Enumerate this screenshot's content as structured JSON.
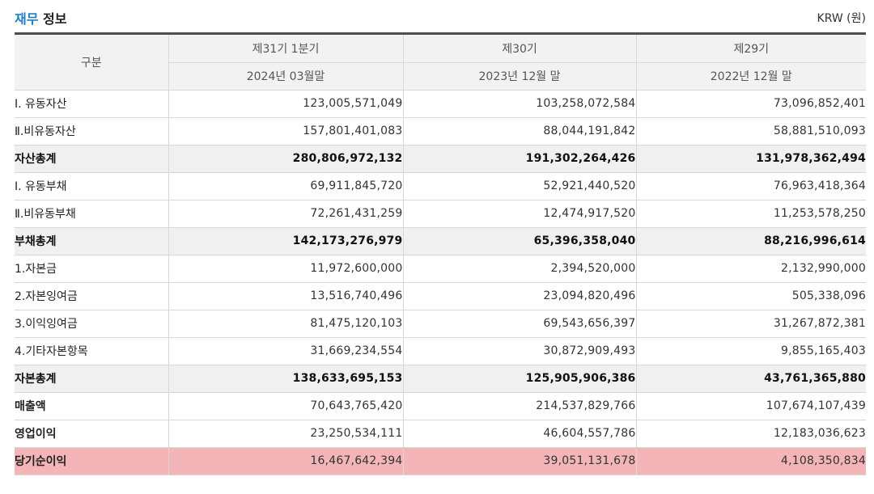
{
  "header": {
    "title_accent": "재무",
    "title_rest": "정보",
    "unit": "KRW (원)"
  },
  "table": {
    "corner_label": "구분",
    "columns": [
      {
        "period": "제31기 1분기",
        "date": "2024년 03월말"
      },
      {
        "period": "제30기",
        "date": "2023년 12월 말"
      },
      {
        "period": "제29기",
        "date": "2022년 12월 말"
      }
    ],
    "rows": [
      {
        "label": "Ⅰ. 유동자산",
        "values": [
          "123,005,571,049",
          "103,258,072,584",
          "73,096,852,401"
        ],
        "style": "normal"
      },
      {
        "label": "Ⅱ.비유동자산",
        "values": [
          "157,801,401,083",
          "88,044,191,842",
          "58,881,510,093"
        ],
        "style": "normal"
      },
      {
        "label": "자산총계",
        "values": [
          "280,806,972,132",
          "191,302,264,426",
          "131,978,362,494"
        ],
        "style": "total"
      },
      {
        "label": "Ⅰ. 유동부채",
        "values": [
          "69,911,845,720",
          "52,921,440,520",
          "76,963,418,364"
        ],
        "style": "normal"
      },
      {
        "label": "Ⅱ.비유동부채",
        "values": [
          "72,261,431,259",
          "12,474,917,520",
          "11,253,578,250"
        ],
        "style": "normal"
      },
      {
        "label": "부채총계",
        "values": [
          "142,173,276,979",
          "65,396,358,040",
          "88,216,996,614"
        ],
        "style": "total"
      },
      {
        "label": "1.자본금",
        "values": [
          "11,972,600,000",
          "2,394,520,000",
          "2,132,990,000"
        ],
        "style": "normal"
      },
      {
        "label": "2.자본잉여금",
        "values": [
          "13,516,740,496",
          "23,094,820,496",
          "505,338,096"
        ],
        "style": "normal"
      },
      {
        "label": "3.이익잉여금",
        "values": [
          "81,475,120,103",
          "69,543,656,397",
          "31,267,872,381"
        ],
        "style": "normal"
      },
      {
        "label": "4.기타자본항목",
        "values": [
          "31,669,234,554",
          "30,872,909,493",
          "9,855,165,403"
        ],
        "style": "normal"
      },
      {
        "label": "자본총계",
        "values": [
          "138,633,695,153",
          "125,905,906,386",
          "43,761,365,880"
        ],
        "style": "total"
      },
      {
        "label": "매출액",
        "values": [
          "70,643,765,420",
          "214,537,829,766",
          "107,674,107,439"
        ],
        "style": "strong"
      },
      {
        "label": "영업이익",
        "values": [
          "23,250,534,111",
          "46,604,557,786",
          "12,183,036,623"
        ],
        "style": "strong"
      },
      {
        "label": "당기순이익",
        "values": [
          "16,467,642,394",
          "39,051,131,678",
          "4,108,350,834"
        ],
        "style": "highlight"
      }
    ]
  },
  "colors": {
    "accent": "#1f7fc4",
    "header_bg": "#f2f2f2",
    "total_bg": "#f0f0f0",
    "highlight_bg": "#f4b5b9",
    "top_rule": "#4d4d4d"
  }
}
